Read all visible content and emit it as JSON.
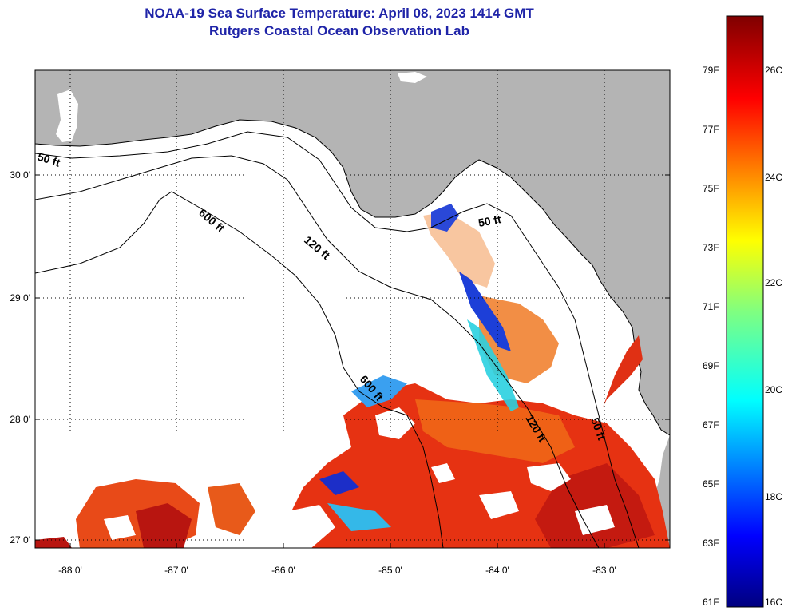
{
  "title": {
    "line1": "NOAA-19 Sea Surface Temperature:  April 08, 2023 1414 GMT",
    "line2": "Rutgers Coastal Ocean Observation Lab"
  },
  "axes": {
    "lon_labels": [
      "-88 0'",
      "-87 0'",
      "-86 0'",
      "-85 0'",
      "-84 0'",
      "-83 0'"
    ],
    "lat_labels": [
      "30 0'",
      "29 0'",
      "28 0'",
      "27 0'"
    ]
  },
  "contours": {
    "label_50_west": "50 ft",
    "label_600_north": "600 ft",
    "label_120_north": "120 ft",
    "label_50_east": "50 ft",
    "label_600_south": "600 ft",
    "label_120_south": "120 ft",
    "label_50_south": "50 ft"
  },
  "colorbar": {
    "fahrenheit_labels": [
      "79F",
      "77F",
      "75F",
      "73F",
      "71F",
      "69F",
      "67F",
      "65F",
      "63F",
      "61F"
    ],
    "celsius_labels": [
      "26C",
      "24C",
      "22C",
      "20C",
      "18C",
      "16C"
    ]
  },
  "colors": {
    "title": "#1f24a8",
    "land": "#b4b4b4",
    "cloud": "#ffffff",
    "warm": "#e63212",
    "warmest": "#a01010"
  }
}
